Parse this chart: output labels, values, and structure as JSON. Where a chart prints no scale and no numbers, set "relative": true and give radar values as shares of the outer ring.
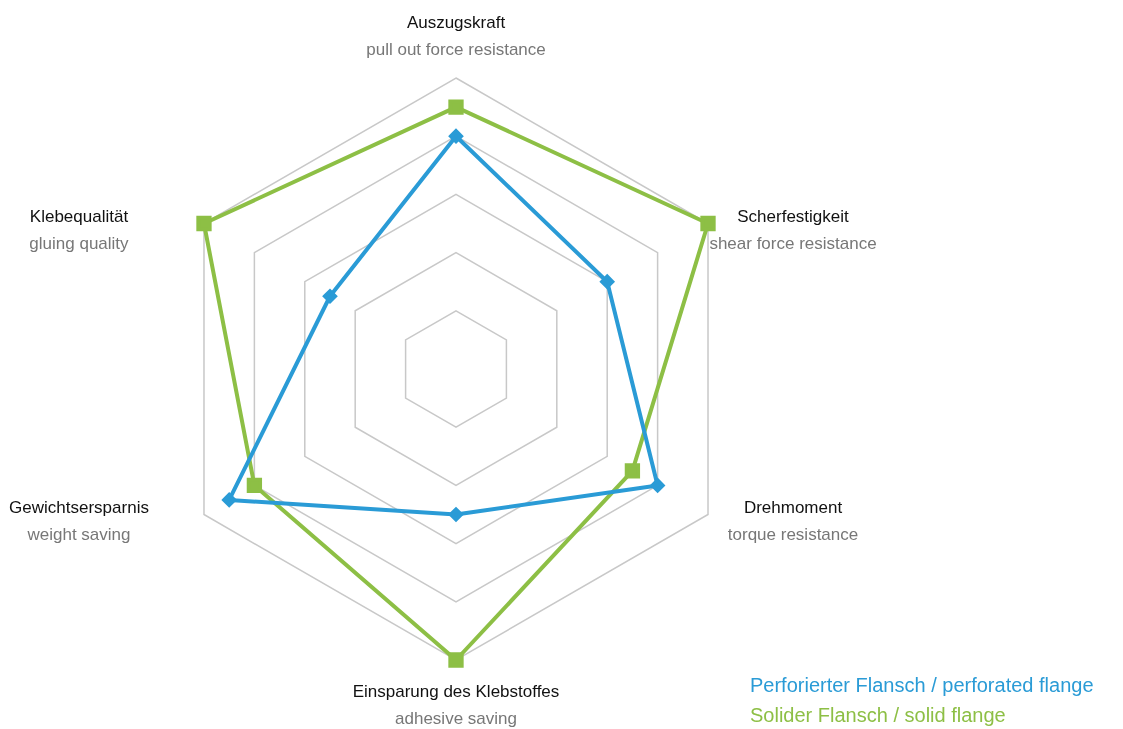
{
  "chart_data": {
    "type": "radar",
    "relative": true,
    "categories": [
      "Auszugskraft\npull out force resistance",
      "Scherfestigkeit\nshear force resistance",
      "Drehmoment\ntorque resistance",
      "Einsparung des Klebstoffes\nadhesive saving",
      "Gewichtsersparnis\nweight saving",
      "Klebequalität\ngluing quality"
    ],
    "series": [
      {
        "name": "Perforierter Flansch / perforated flange",
        "color": "#2a9bd6",
        "marker": "diamond",
        "values": [
          0.8,
          0.6,
          0.8,
          0.5,
          0.9,
          0.5
        ]
      },
      {
        "name": "Solider Flansch / solid flange",
        "color": "#8dbf45",
        "marker": "square",
        "values": [
          0.9,
          1.0,
          0.7,
          1.0,
          0.8,
          1.0
        ]
      }
    ],
    "grid": true,
    "legend": "bottom right"
  }
}
